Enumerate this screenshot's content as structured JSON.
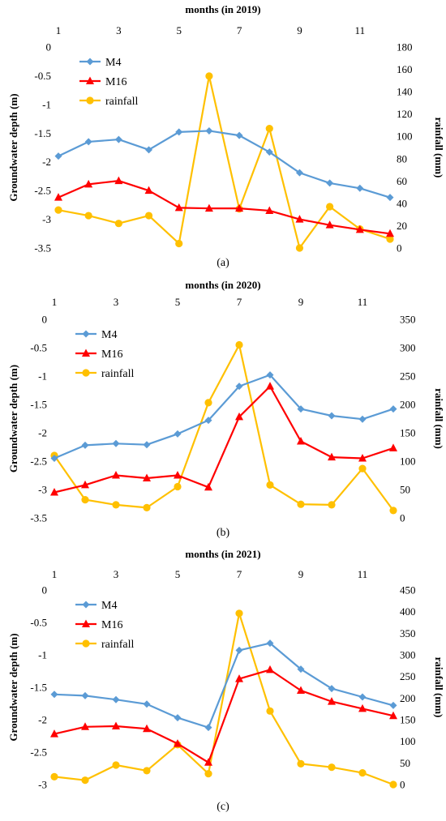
{
  "colors": {
    "M4": "#5b9bd5",
    "M16": "#ff0000",
    "rainfall": "#ffc000"
  },
  "chart_data": [
    {
      "type": "line",
      "caption": "(a)",
      "x2label": "months (in 2019)",
      "ylabel": "Groundwater depth (m)",
      "y2label": "rainfall (mm)",
      "x": [
        1,
        2,
        3,
        4,
        5,
        6,
        7,
        8,
        9,
        10,
        11,
        12
      ],
      "xticks": [
        "1",
        "3",
        "5",
        "7",
        "9",
        "11"
      ],
      "ylim": [
        -3.5,
        0
      ],
      "yticks": [
        "0",
        "-0.5",
        "-1",
        "-1.5",
        "-2",
        "-2.5",
        "-3",
        "-3.5"
      ],
      "y2lim": [
        0,
        180
      ],
      "y2ticks": [
        "180",
        "160",
        "140",
        "120",
        "100",
        "80",
        "60",
        "40",
        "20",
        "0"
      ],
      "legend": "top-left",
      "series": [
        {
          "name": "M4",
          "axis": "left",
          "marker": "diamond",
          "values": [
            -1.9,
            -1.65,
            -1.61,
            -1.79,
            -1.48,
            -1.46,
            -1.54,
            -1.83,
            -2.19,
            -2.37,
            -2.46,
            -2.62
          ]
        },
        {
          "name": "M16",
          "axis": "left",
          "marker": "triangle",
          "values": [
            -2.62,
            -2.39,
            -2.33,
            -2.5,
            -2.8,
            -2.81,
            -2.81,
            -2.85,
            -3.0,
            -3.1,
            -3.18,
            -3.25
          ]
        },
        {
          "name": "rainfall",
          "axis": "right",
          "marker": "circle",
          "values": [
            34,
            29,
            22,
            29,
            4,
            154,
            35,
            107,
            0,
            37,
            17,
            8
          ]
        }
      ]
    },
    {
      "type": "line",
      "caption": "(b)",
      "x2label": "months (in 2020)",
      "ylabel": "Groundwater depth (m)",
      "y2label": "rainfall (mm)",
      "x": [
        1,
        2,
        3,
        4,
        5,
        6,
        7,
        8,
        9,
        10,
        11,
        12
      ],
      "xticks": [
        "1",
        "3",
        "5",
        "7",
        "9",
        "11"
      ],
      "ylim": [
        -3.5,
        0
      ],
      "yticks": [
        "0",
        "-0.5",
        "-1",
        "-1.5",
        "-2",
        "-2.5",
        "-3",
        "-3.5"
      ],
      "y2lim": [
        0,
        350
      ],
      "y2ticks": [
        "350",
        "300",
        "250",
        "200",
        "150",
        "100",
        "50",
        "0"
      ],
      "legend": "top-left",
      "series": [
        {
          "name": "M4",
          "axis": "left",
          "marker": "diamond",
          "values": [
            -2.45,
            -2.22,
            -2.19,
            -2.21,
            -2.02,
            -1.78,
            -1.18,
            -0.98,
            -1.58,
            -1.7,
            -1.76,
            -1.58
          ]
        },
        {
          "name": "M16",
          "axis": "left",
          "marker": "triangle",
          "values": [
            -3.05,
            -2.92,
            -2.75,
            -2.8,
            -2.75,
            -2.96,
            -1.72,
            -1.18,
            -2.15,
            -2.43,
            -2.45,
            -2.27
          ]
        },
        {
          "name": "rainfall",
          "axis": "right",
          "marker": "circle",
          "values": [
            110,
            32,
            23,
            18,
            55,
            203,
            305,
            58,
            24,
            23,
            87,
            13
          ]
        }
      ]
    },
    {
      "type": "line",
      "caption": "(c)",
      "x2label": "months (in 2021)",
      "ylabel": "Groundwater depth (m)",
      "y2label": "rainfall (mm)",
      "x": [
        1,
        2,
        3,
        4,
        5,
        6,
        7,
        8,
        9,
        10,
        11,
        12
      ],
      "xticks": [
        "1",
        "3",
        "5",
        "7",
        "9",
        "11"
      ],
      "ylim": [
        -3,
        0
      ],
      "yticks": [
        "0",
        "-0.5",
        "-1",
        "-1.5",
        "-2",
        "-2.5",
        "-3"
      ],
      "y2lim": [
        0,
        450
      ],
      "y2ticks": [
        "450",
        "400",
        "350",
        "300",
        "250",
        "200",
        "150",
        "100",
        "50",
        "0"
      ],
      "legend": "top-left",
      "series": [
        {
          "name": "M4",
          "axis": "left",
          "marker": "diamond",
          "values": [
            -1.61,
            -1.63,
            -1.69,
            -1.76,
            -1.97,
            -2.12,
            -0.93,
            -0.82,
            -1.22,
            -1.52,
            -1.65,
            -1.78
          ]
        },
        {
          "name": "M16",
          "axis": "left",
          "marker": "triangle",
          "values": [
            -2.22,
            -2.11,
            -2.1,
            -2.14,
            -2.37,
            -2.66,
            -1.37,
            -1.23,
            -1.55,
            -1.72,
            -1.83,
            -1.94
          ]
        },
        {
          "name": "rainfall",
          "axis": "right",
          "marker": "circle",
          "values": [
            18,
            10,
            45,
            32,
            92,
            25,
            396,
            170,
            48,
            40,
            27,
            0
          ]
        }
      ]
    }
  ]
}
